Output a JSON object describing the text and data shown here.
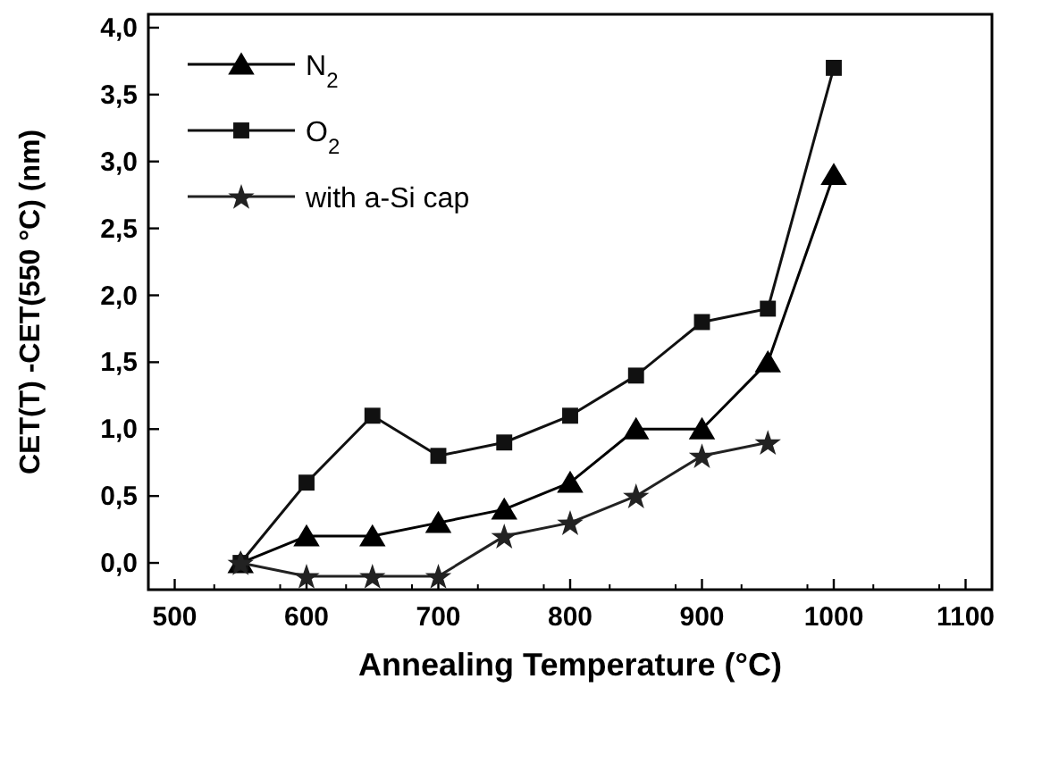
{
  "chart_data": {
    "type": "line",
    "xlabel": "Annealing Temperature (°C)",
    "ylabel": "CET(T) -CET(550 °C) (nm)",
    "x": [
      550,
      600,
      650,
      700,
      750,
      800,
      850,
      900,
      950,
      1000
    ],
    "xlim": [
      480,
      1120
    ],
    "xticks": [
      500,
      600,
      700,
      800,
      900,
      1000,
      1100
    ],
    "ylim": [
      -0.2,
      4.1
    ],
    "yticks": [
      {
        "value": 0,
        "label": "0,0"
      },
      {
        "value": 0.5,
        "label": "0,5"
      },
      {
        "value": 1,
        "label": "1,0"
      },
      {
        "value": 1.5,
        "label": "1,5"
      },
      {
        "value": 2,
        "label": "2,0"
      },
      {
        "value": 2.5,
        "label": "2,5"
      },
      {
        "value": 3,
        "label": "3,0"
      },
      {
        "value": 3.5,
        "label": "3,5"
      },
      {
        "value": 4,
        "label": "4,0"
      }
    ],
    "grid": false,
    "legend": "top left",
    "line_style": "solid",
    "series": [
      {
        "name": "N$_{2}$",
        "color": "#000000",
        "marker": "triangle",
        "values": [
          0,
          0.2,
          0.2,
          0.3,
          0.4,
          0.6,
          1.0,
          1.0,
          1.5,
          2.9
        ]
      },
      {
        "name": "O$_{2}$",
        "color": "#111111",
        "marker": "square",
        "values": [
          0,
          0.6,
          1.1,
          0.8,
          0.9,
          1.1,
          1.4,
          1.8,
          1.9,
          3.7
        ]
      },
      {
        "name": "with a-Si cap",
        "color": "#222222",
        "marker": "star",
        "values": [
          0,
          -0.1,
          -0.1,
          -0.1,
          0.2,
          0.3,
          0.5,
          0.8,
          0.9,
          null
        ]
      }
    ]
  }
}
